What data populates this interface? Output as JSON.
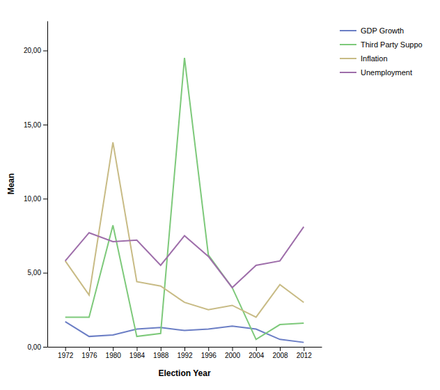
{
  "chart_data": {
    "type": "line",
    "xlabel": "Election Year",
    "ylabel": "Mean",
    "x": [
      1972,
      1976,
      1980,
      1984,
      1988,
      1992,
      1996,
      2000,
      2004,
      2008,
      2012
    ],
    "series": [
      {
        "name": "GDP Growth",
        "color": "#6B7EC5",
        "values": [
          1.7,
          0.7,
          0.8,
          1.2,
          1.3,
          1.1,
          1.2,
          1.4,
          1.2,
          0.5,
          0.3
        ]
      },
      {
        "name": "Third Party Suppo",
        "color": "#7DC97A",
        "values": [
          2.0,
          2.0,
          8.2,
          0.7,
          0.9,
          19.5,
          6.2,
          4.0,
          0.5,
          1.5,
          1.6
        ]
      },
      {
        "name": "Inflation",
        "color": "#C8BB85",
        "values": [
          5.8,
          3.5,
          13.8,
          4.4,
          4.1,
          3.0,
          2.5,
          2.8,
          2.0,
          4.2,
          3.0
        ]
      },
      {
        "name": "Unemployment",
        "color": "#9E6EAA",
        "values": [
          5.8,
          7.7,
          7.1,
          7.2,
          5.5,
          7.5,
          6.1,
          4.0,
          5.5,
          5.8,
          8.1
        ]
      }
    ],
    "xlim": [
      1969,
      2015
    ],
    "xticks": [
      1972,
      1976,
      1980,
      1984,
      1988,
      1992,
      1996,
      2000,
      2004,
      2008,
      2012
    ],
    "ylim": [
      0,
      22
    ],
    "yticks": [
      {
        "value": 0,
        "label": "0,00"
      },
      {
        "value": 5,
        "label": "5,00"
      },
      {
        "value": 10,
        "label": "10,00"
      },
      {
        "value": 15,
        "label": "15,00"
      },
      {
        "value": 20,
        "label": "20,00"
      }
    ],
    "grid": false,
    "legend": "right"
  }
}
